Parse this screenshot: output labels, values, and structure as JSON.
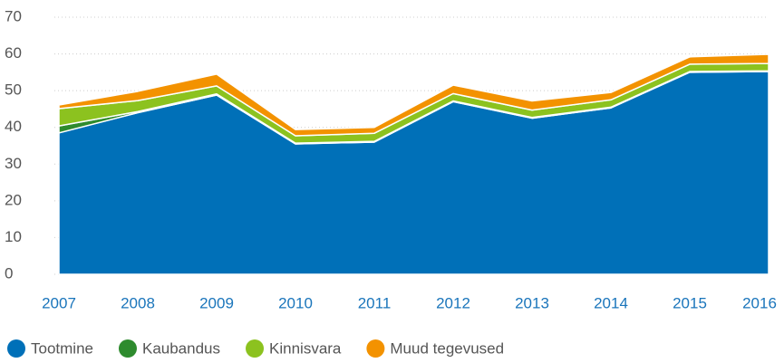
{
  "chart_data": {
    "type": "stacked_area",
    "categories": [
      "2007",
      "2008",
      "2009",
      "2010",
      "2011",
      "2012",
      "2013",
      "2014",
      "2015",
      "2016"
    ],
    "series": [
      {
        "name": "Tootmine",
        "color": "#0070b8",
        "values": [
          38.5,
          44,
          48.8,
          35.5,
          36,
          47,
          42.5,
          45.3,
          55,
          55.2
        ]
      },
      {
        "name": "Kaubandus",
        "color": "#2e8b2e",
        "values": [
          1.9,
          0.3,
          0.3,
          0.2,
          0.2,
          0.2,
          0.2,
          0.2,
          0.2,
          0.2
        ]
      },
      {
        "name": "Kinnisvara",
        "color": "#8cc21f",
        "values": [
          4.7,
          3,
          2.2,
          2,
          2.2,
          2,
          2,
          2,
          2,
          2
        ]
      },
      {
        "name": "Muud tegevused",
        "color": "#f39200",
        "values": [
          1,
          2.5,
          3.2,
          1.7,
          1.6,
          2.3,
          2.5,
          2,
          2,
          2.5
        ]
      }
    ],
    "ylim": [
      0,
      70
    ],
    "yticks": [
      0,
      10,
      20,
      30,
      40,
      50,
      60,
      70
    ],
    "grid": true,
    "legend": "bottom"
  }
}
